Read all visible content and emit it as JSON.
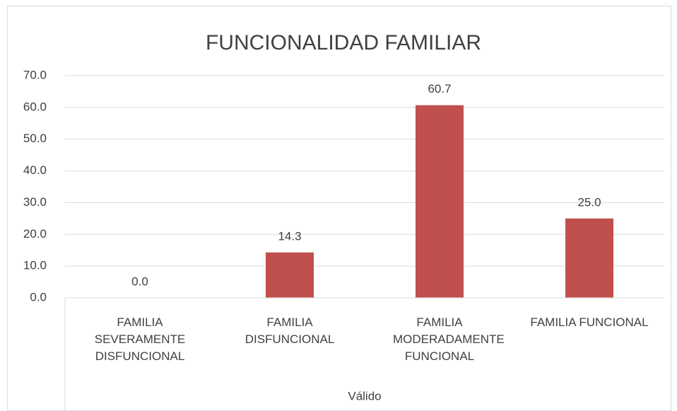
{
  "chart_data": {
    "type": "bar",
    "title": "FUNCIONALIDAD FAMILIAR",
    "categories": [
      "FAMILIA SEVERAMENTE DISFUNCIONAL",
      "FAMILIA DISFUNCIONAL",
      "FAMILIA MODERADAMENTE FUNCIONAL",
      "FAMILIA FUNCIONAL"
    ],
    "group_label": "Válido",
    "values": [
      0,
      14.3,
      60.7,
      25.0
    ],
    "value_labels": [
      "0.0",
      "14.3",
      "60.7",
      "25.0"
    ],
    "color": "#c0504d",
    "ylim": [
      0,
      70
    ],
    "yticks": [
      {
        "value": 0,
        "label": "0.0"
      },
      {
        "value": 10,
        "label": "10.0"
      },
      {
        "value": 20,
        "label": "20.0"
      },
      {
        "value": 30,
        "label": "30.0"
      },
      {
        "value": 40,
        "label": "40.0"
      },
      {
        "value": 50,
        "label": "50.0"
      },
      {
        "value": 60,
        "label": "60.0"
      },
      {
        "value": 70,
        "label": "70.0"
      }
    ],
    "grid": true
  }
}
